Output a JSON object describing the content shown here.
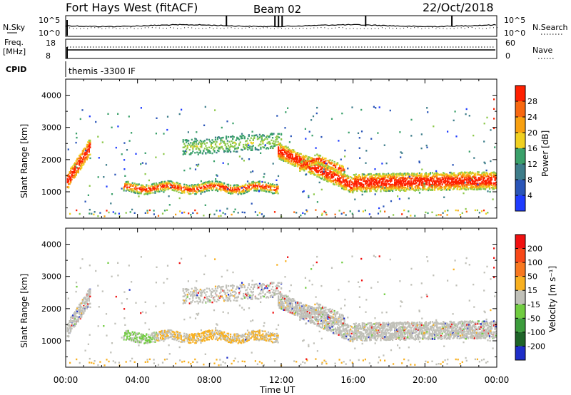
{
  "header": {
    "site": "Fort Hays West (fitACF)",
    "beam": "Beam 02",
    "date": "22/Oct/2018"
  },
  "top_panel": {
    "left_label": "N.Sky",
    "left_ticks": [
      "10^5",
      "10^0"
    ],
    "right_ticks": [
      "10^5",
      "10^0"
    ],
    "right_label": "N.Search"
  },
  "freq_panel": {
    "left_label_1": "Freq.",
    "left_label_2": "[MHz]",
    "left_ticks": [
      "18",
      "8"
    ],
    "right_ticks": [
      "60",
      "0"
    ],
    "right_label": "Nave"
  },
  "cpid": {
    "label": "CPID",
    "value": "themis -3300 IF"
  },
  "chart_data": [
    {
      "type": "heatmap",
      "name": "power",
      "ylabel": "Slant Range [km]",
      "ylim": [
        180,
        4500
      ],
      "y_ticks": [
        1000,
        2000,
        3000,
        4000
      ],
      "y_tick_labels": [
        "1000",
        "2000",
        "3000",
        "4000"
      ],
      "colorbar_label": "Power [dB]",
      "colorbar_ticks": [
        "4",
        "8",
        "12",
        "16",
        "20",
        "24",
        "28"
      ],
      "colorbar_range": [
        0,
        32
      ]
    },
    {
      "type": "heatmap",
      "name": "velocity",
      "ylabel": "Slant Range [km]",
      "ylim": [
        180,
        4500
      ],
      "y_ticks": [
        1000,
        2000,
        3000,
        4000
      ],
      "y_tick_labels": [
        "1000",
        "2000",
        "3000",
        "4000"
      ],
      "colorbar_label": "Velocity [m s⁻¹]",
      "colorbar_ticks": [
        "200",
        "100",
        "50",
        "15",
        "-15",
        "-50",
        "-100",
        "-200"
      ]
    }
  ],
  "x_axis": {
    "label": "Time UT",
    "ticks": [
      "00:00",
      "04:00",
      "08:00",
      "12:00",
      "16:00",
      "20:00",
      "00:00"
    ]
  },
  "colors": {
    "power_scale": [
      "#1f3cff",
      "#2a55b8",
      "#3e7d8a",
      "#3aa06a",
      "#8cc84a",
      "#f0d020",
      "#f8a010",
      "#f86810",
      "#ff2000"
    ],
    "velocity_scale": [
      "#1e2ec8",
      "#1e6428",
      "#3c9c3c",
      "#70cc40",
      "#c0c0b8",
      "#f8b020",
      "#f87820",
      "#f84818",
      "#f01010"
    ]
  }
}
